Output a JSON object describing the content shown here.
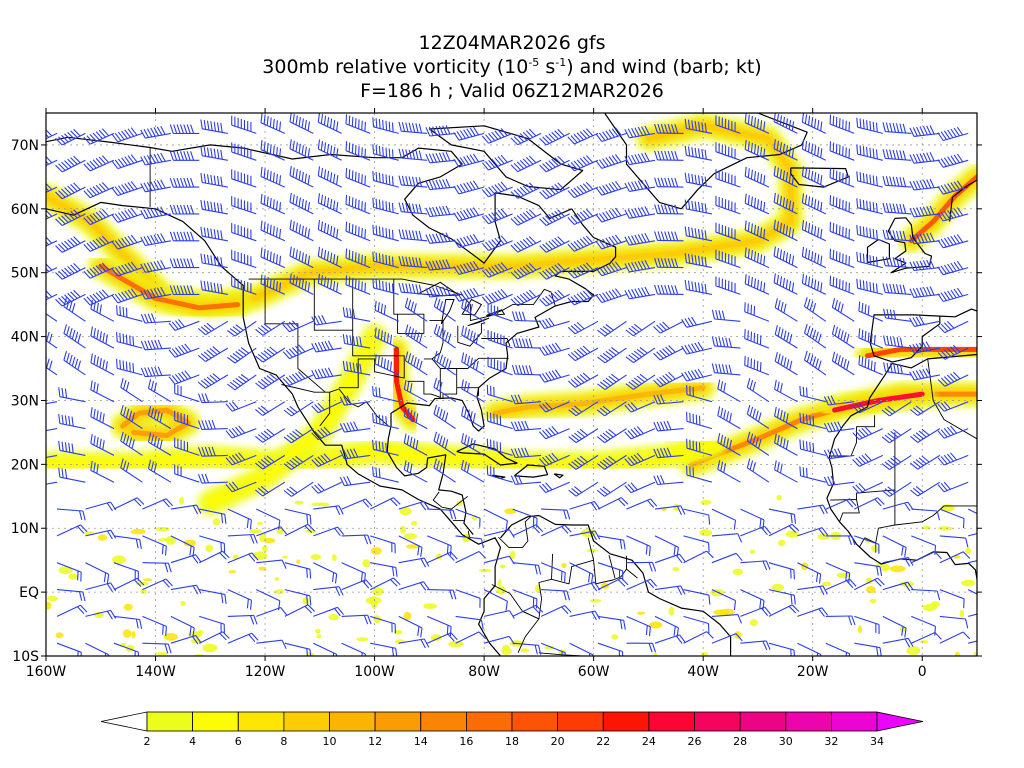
{
  "title": {
    "line1": "12Z04MAR2026 gfs",
    "line2_pre": "300mb relative vorticity (10",
    "line2_exp1": "-5",
    "line2_mid": " s",
    "line2_exp2": "-1",
    "line2_post": ") and wind (barb; kt)",
    "line3": "F=186 h ; Valid 06Z12MAR2026"
  },
  "map": {
    "lon_range": [
      -160,
      10
    ],
    "lat_range": [
      -10,
      75
    ],
    "lat_ticks": [
      {
        "lat": 70,
        "label": "70N"
      },
      {
        "lat": 60,
        "label": "60N"
      },
      {
        "lat": 50,
        "label": "50N"
      },
      {
        "lat": 40,
        "label": "40N"
      },
      {
        "lat": 30,
        "label": "30N"
      },
      {
        "lat": 20,
        "label": "20N"
      },
      {
        "lat": 10,
        "label": "10N"
      },
      {
        "lat": 0,
        "label": "EQ"
      },
      {
        "lat": -10,
        "label": "10S"
      }
    ],
    "lon_ticks": [
      {
        "lon": -160,
        "label": "160W"
      },
      {
        "lon": -140,
        "label": "140W"
      },
      {
        "lon": -120,
        "label": "120W"
      },
      {
        "lon": -100,
        "label": "100W"
      },
      {
        "lon": -80,
        "label": "80W"
      },
      {
        "lon": -60,
        "label": "60W"
      },
      {
        "lon": -40,
        "label": "40W"
      },
      {
        "lon": -20,
        "label": "20W"
      },
      {
        "lon": 0,
        "label": "0"
      }
    ],
    "grid": true,
    "barb_color": "#2c3ee8",
    "coast_color": "#000000"
  },
  "colorbar": {
    "labels": [
      "2",
      "4",
      "6",
      "8",
      "10",
      "12",
      "14",
      "16",
      "18",
      "20",
      "22",
      "24",
      "26",
      "28",
      "30",
      "32",
      "34"
    ],
    "colors": [
      "#ecfc1c",
      "#fcfc04",
      "#fce404",
      "#fccc04",
      "#fcb404",
      "#fc9c04",
      "#fc8404",
      "#fc6c04",
      "#fc5404",
      "#fc3c04",
      "#fc1404",
      "#fc0434",
      "#f4045c",
      "#ec0484",
      "#ec04ac",
      "#ec04d4",
      "#ec04fc"
    ]
  },
  "vorticity_bands": [
    {
      "pts": [
        [
          -160,
          62
        ],
        [
          -152,
          58
        ],
        [
          -145,
          52
        ],
        [
          -138,
          46
        ],
        [
          -130,
          45
        ],
        [
          -122,
          46
        ],
        [
          -112,
          50
        ],
        [
          -100,
          51
        ],
        [
          -88,
          51
        ],
        [
          -75,
          51
        ],
        [
          -60,
          52
        ],
        [
          -45,
          53
        ],
        [
          -30,
          55
        ],
        [
          -24,
          58
        ],
        [
          -24,
          66
        ],
        [
          -28,
          71
        ],
        [
          -40,
          73
        ],
        [
          -50,
          71
        ]
      ],
      "level": 8
    },
    {
      "pts": [
        [
          -150,
          51
        ],
        [
          -140,
          46
        ],
        [
          -132,
          44.5
        ],
        [
          -125,
          45
        ]
      ],
      "level": 16
    },
    {
      "pts": [
        [
          -96,
          38
        ],
        [
          -96,
          33
        ],
        [
          -95,
          29
        ],
        [
          -93,
          27
        ]
      ],
      "level": 22
    },
    {
      "pts": [
        [
          -146,
          26
        ],
        [
          -143,
          28
        ],
        [
          -138,
          28.5
        ],
        [
          -134,
          26.5
        ],
        [
          -138,
          24.5
        ],
        [
          -144,
          25
        ]
      ],
      "level": 12
    },
    {
      "pts": [
        [
          -78,
          28
        ],
        [
          -72,
          29
        ],
        [
          -62,
          29.5
        ],
        [
          -50,
          31
        ],
        [
          -40,
          32
        ]
      ],
      "level": 10
    },
    {
      "pts": [
        [
          -42,
          20
        ],
        [
          -36,
          22
        ],
        [
          -30,
          24
        ],
        [
          -22,
          27
        ],
        [
          -14,
          29
        ],
        [
          -4,
          31
        ],
        [
          10,
          31
        ]
      ],
      "level": 14
    },
    {
      "pts": [
        [
          -16,
          28.5
        ],
        [
          -8,
          30
        ],
        [
          0,
          31
        ]
      ],
      "level": 24
    },
    {
      "pts": [
        [
          -160,
          20
        ],
        [
          -145,
          20
        ],
        [
          -130,
          21
        ],
        [
          -115,
          20
        ],
        [
          -100,
          22
        ],
        [
          -85,
          21
        ],
        [
          -72,
          20
        ],
        [
          -60,
          20
        ],
        [
          -48,
          21
        ],
        [
          -38,
          23
        ]
      ],
      "level": 4
    },
    {
      "pts": [
        [
          -10,
          37
        ],
        [
          -4,
          38
        ],
        [
          4,
          38
        ],
        [
          10,
          38
        ]
      ],
      "level": 20
    },
    {
      "pts": [
        [
          -2,
          55
        ],
        [
          2,
          58
        ],
        [
          6,
          62
        ],
        [
          10,
          65
        ]
      ],
      "level": 18
    },
    {
      "pts": [
        [
          -100,
          40
        ],
        [
          -105,
          32
        ],
        [
          -110,
          25
        ],
        [
          -120,
          18
        ],
        [
          -130,
          14
        ]
      ],
      "level": 4
    }
  ]
}
